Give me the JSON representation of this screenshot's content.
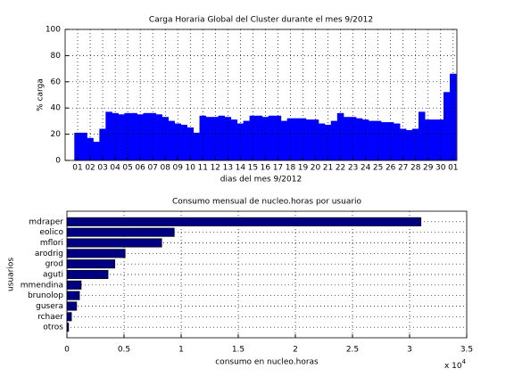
{
  "chart_data": [
    {
      "type": "area",
      "title": "Carga Horaria Global del Cluster durante el mes 9/2012",
      "xlabel": "dias del mes 9/2012",
      "ylabel": "% carga",
      "color": "#0000ff",
      "x": [
        1,
        1.5,
        2,
        2.5,
        3,
        3.5,
        4,
        4.5,
        5,
        5.5,
        6,
        6.5,
        7,
        7.5,
        8,
        8.5,
        9,
        9.5,
        10,
        10.5,
        11,
        11.5,
        12,
        12.5,
        13,
        13.5,
        14,
        14.5,
        15,
        15.5,
        16,
        16.5,
        17,
        17.5,
        18,
        18.5,
        19,
        19.5,
        20,
        20.5,
        21,
        21.5,
        22,
        22.5,
        23,
        23.5,
        24,
        24.5,
        25,
        25.5,
        26,
        26.5,
        27,
        27.5,
        28,
        28.5,
        29,
        29.5,
        30,
        30.5,
        31
      ],
      "values": [
        21,
        21,
        17,
        14,
        24,
        37,
        36,
        35,
        36,
        36,
        35,
        36,
        36,
        35,
        33,
        30,
        28,
        27,
        25,
        21,
        34,
        33,
        33,
        34,
        33,
        31,
        28,
        30,
        34,
        34,
        33,
        34,
        34,
        30,
        32,
        32,
        32,
        31,
        31,
        28,
        27,
        30,
        36,
        33,
        33,
        32,
        31,
        30,
        30,
        29,
        29,
        28,
        24,
        23,
        24,
        37,
        31,
        31,
        31,
        52,
        66
      ],
      "xlim": [
        0,
        31.3
      ],
      "xticks": [
        {
          "value": 1,
          "label": "01"
        },
        {
          "value": 2,
          "label": "02"
        },
        {
          "value": 3,
          "label": "03"
        },
        {
          "value": 4,
          "label": "04"
        },
        {
          "value": 5,
          "label": "05"
        },
        {
          "value": 6,
          "label": "06"
        },
        {
          "value": 7,
          "label": "07"
        },
        {
          "value": 8,
          "label": "08"
        },
        {
          "value": 9,
          "label": "09"
        },
        10,
        11,
        12,
        13,
        14,
        15,
        16,
        17,
        18,
        19,
        20,
        21,
        22,
        23,
        24,
        25,
        26,
        27,
        28,
        29,
        30,
        {
          "value": 31,
          "label": "01"
        }
      ],
      "ylim": [
        0,
        100
      ],
      "yticks": [
        0,
        20,
        40,
        60,
        80,
        100
      ],
      "grid": true
    },
    {
      "type": "barh",
      "title": "Consumo mensual de nucleo.horas por usuario",
      "xlabel": "consumo en nucleo.horas",
      "ylabel": "usuarios",
      "x_multiplier": [
        "x 10",
        "4"
      ],
      "color": "#000080",
      "categories": [
        "mdraper",
        "eolico",
        "mflori",
        "arodrig",
        "grod",
        "aguti",
        "mmendina",
        "brunolop",
        "gusera",
        "rchaer",
        "otros"
      ],
      "values": [
        31000,
        9400,
        8300,
        5100,
        4200,
        3600,
        1250,
        1100,
        850,
        400,
        150
      ],
      "xlim": [
        0,
        35000
      ],
      "xticks": [
        0,
        {
          "value": 5000,
          "label": "0.5"
        },
        {
          "value": 10000,
          "label": "1"
        },
        {
          "value": 15000,
          "label": "1.5"
        },
        {
          "value": 20000,
          "label": "2"
        },
        {
          "value": 25000,
          "label": "2.5"
        },
        {
          "value": 30000,
          "label": "3"
        },
        {
          "value": 35000,
          "label": "3.5"
        }
      ],
      "grid": true
    }
  ]
}
